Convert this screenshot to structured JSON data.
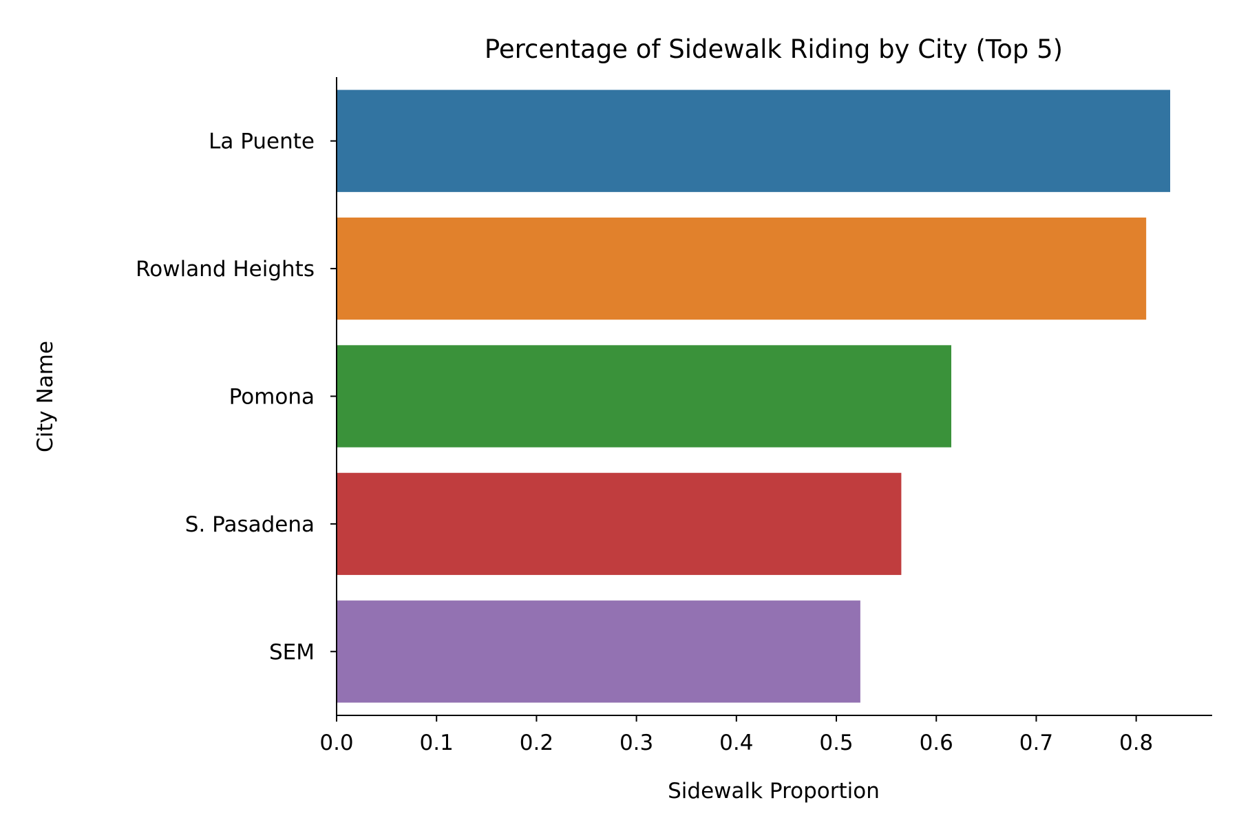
{
  "chart_data": {
    "type": "bar",
    "orientation": "horizontal",
    "title": "Percentage of Sidewalk Riding by City (Top 5)",
    "xlabel": "Sidewalk Proportion",
    "ylabel": "City Name",
    "categories": [
      "La Puente",
      "Rowland Heights",
      "Pomona",
      "S. Pasadena",
      "SEM"
    ],
    "values": [
      0.834,
      0.81,
      0.615,
      0.565,
      0.524
    ],
    "colors": [
      "#3274a1",
      "#e1812c",
      "#3a923a",
      "#c03d3e",
      "#9372b2"
    ],
    "xlim": [
      0,
      0.876
    ],
    "xticks": [
      0.0,
      0.1,
      0.2,
      0.3,
      0.4,
      0.5,
      0.6,
      0.7,
      0.8
    ],
    "xtick_labels": [
      "0.0",
      "0.1",
      "0.2",
      "0.3",
      "0.4",
      "0.5",
      "0.6",
      "0.7",
      "0.8"
    ],
    "grid": false,
    "spines": [
      "left",
      "bottom"
    ]
  }
}
